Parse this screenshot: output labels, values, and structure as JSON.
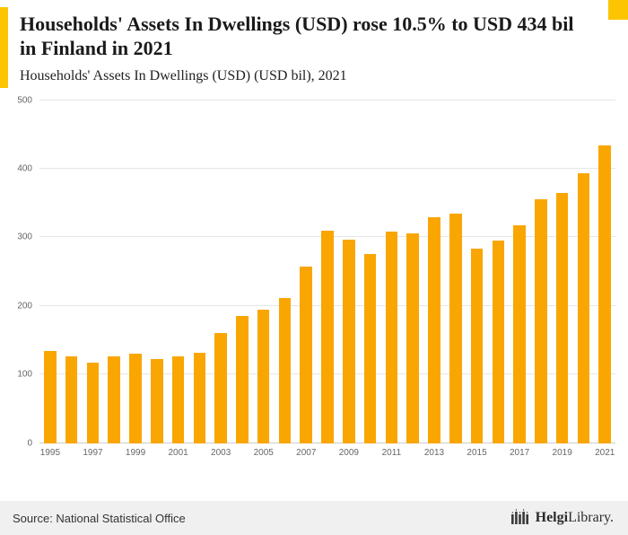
{
  "header": {
    "title": "Households' Assets In Dwellings (USD) rose 10.5% to USD 434 bil in Finland in 2021",
    "subtitle": "Households' Assets In Dwellings (USD) (USD bil), 2021"
  },
  "footer": {
    "source": "Source: National Statistical Office",
    "logo_bold": "Helgi",
    "logo_regular": "Library."
  },
  "colors": {
    "bar": "#F9A602",
    "accent": "#FDC500",
    "grid": "#e6e6e6",
    "axis_text": "#666666"
  },
  "chart_data": {
    "type": "bar",
    "title": "Households' Assets In Dwellings (USD) (USD bil), 2021",
    "categories": [
      1995,
      1996,
      1997,
      1998,
      1999,
      2000,
      2001,
      2002,
      2003,
      2004,
      2005,
      2006,
      2007,
      2008,
      2009,
      2010,
      2011,
      2012,
      2013,
      2014,
      2015,
      2016,
      2017,
      2018,
      2019,
      2020,
      2021
    ],
    "values": [
      135,
      126,
      118,
      127,
      130,
      122,
      126,
      132,
      160,
      185,
      195,
      212,
      258,
      310,
      297,
      276,
      309,
      306,
      329,
      335,
      284,
      295,
      318,
      355,
      365,
      393,
      434
    ],
    "xlabel": "",
    "ylabel": "",
    "ylim": [
      0,
      500
    ],
    "yticks": [
      0,
      100,
      200,
      300,
      400,
      500
    ],
    "x_label_every": 2,
    "grid": true,
    "legend": false,
    "bar_color": "#F9A602"
  }
}
